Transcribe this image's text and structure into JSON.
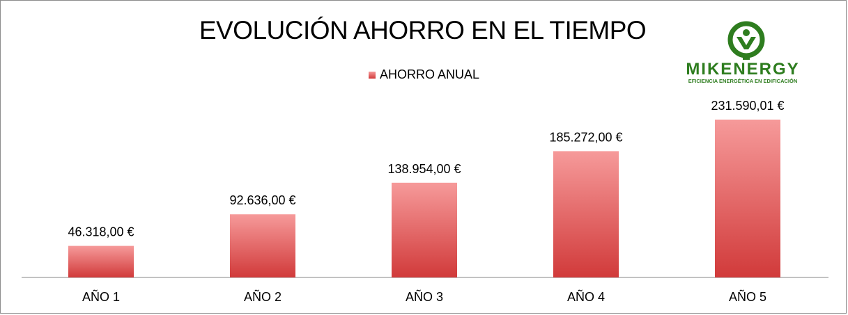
{
  "chart_data": {
    "type": "bar",
    "title": "EVOLUCIÓN AHORRO EN EL TIEMPO",
    "xlabel": "",
    "ylabel": "",
    "categories": [
      "AÑO 1",
      "AÑO 2",
      "AÑO 3",
      "AÑO 4",
      "AÑO 5"
    ],
    "series": [
      {
        "name": "AHORRO ANUAL",
        "values": [
          46318.0,
          92636.0,
          138954.0,
          185272.0,
          231590.01
        ],
        "labels": [
          "46.318,00 €",
          "92.636,00 €",
          "138.954,00 €",
          "185.272,00 €",
          "231.590,01 €"
        ],
        "color_top": "#f69a9a",
        "color_bottom": "#d13a3a"
      }
    ],
    "ylim": [
      0,
      231590.01
    ],
    "grid": false,
    "legend_position": "top-center"
  },
  "logo": {
    "name": "MIKENERGY",
    "tagline": "EFICIENCIA ENERGÉTICA EN EDIFICACIÓN",
    "color": "#2e7d1f"
  }
}
